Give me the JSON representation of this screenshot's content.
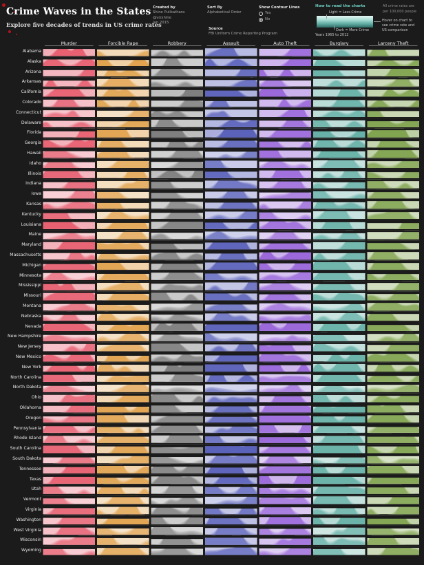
{
  "header": {
    "title": "Crime Waves in the States",
    "subtitle": "Explore five decades of trends in US crime rates",
    "created_by_label": "Created by",
    "author_name": "Shine Pulikathara",
    "author_handle": "@vizshine",
    "date": "Jan 2015",
    "sort_by_label": "Sort By",
    "sort_value": "Alphabetical Order",
    "source_label": "Source",
    "source_value": "FBI Uniform Crime Reporting Program",
    "contour_label": "Show Contour Lines",
    "contour_yes": "Yes",
    "contour_no": "No",
    "contour_selected": "No",
    "howto_title": "How to read the charts",
    "legend_light": "Light = Less Crime",
    "legend_dark": "Dark = More Crime",
    "legend_years": "Years  1965 to 2012",
    "rates_note_1": "All crime rates are",
    "rates_note_2": "per 100,000 people",
    "hover_note_1": "Hover on chart to",
    "hover_note_2": "see crime rate and",
    "hover_note_3": "US comparison"
  },
  "colors": {
    "background": "#1b1b1b",
    "Murder": "#e0344a",
    "Forcible Rape": "#d9891e",
    "Robbery": "#5b5b5b",
    "Assault": "#2c35a6",
    "Auto Theft": "#7e3ed0",
    "Burglary": "#3c9b8f",
    "Larceny Theft": "#5d8a1e"
  },
  "chart_data": {
    "type": "area",
    "x_range": [
      1965,
      2012
    ],
    "columns": [
      "Murder",
      "Forcible Rape",
      "Robbery",
      "Assault",
      "Auto Theft",
      "Burglary",
      "Larceny Theft"
    ],
    "rows": [
      "Alabama",
      "Alaska",
      "Arizona",
      "Arkansas",
      "California",
      "Colorado",
      "Connecticut",
      "Delaware",
      "Florida",
      "Georgia",
      "Hawaii",
      "Idaho",
      "Illinois",
      "Indiana",
      "Iowa",
      "Kansas",
      "Kentucky",
      "Louisiana",
      "Maine",
      "Maryland",
      "Massachusetts",
      "Michigan",
      "Minnesota",
      "Mississippi",
      "Missouri",
      "Montana",
      "Nebraska",
      "Nevada",
      "New Hampshire",
      "New Jersey",
      "New Mexico",
      "New York",
      "North Carolina",
      "North Dakota",
      "Ohio",
      "Oklahoma",
      "Oregon",
      "Pennsylvania",
      "Rhode Island",
      "South Carolina",
      "South Dakota",
      "Tennessee",
      "Texas",
      "Utah",
      "Vermont",
      "Virginia",
      "Washington",
      "West Virginia",
      "Wisconsin",
      "Wyoming"
    ],
    "intensity": [
      [
        9,
        5,
        5,
        6,
        7,
        6,
        6
      ],
      [
        8,
        9,
        5,
        7,
        8,
        7,
        7
      ],
      [
        7,
        7,
        6,
        6,
        8,
        8,
        8
      ],
      [
        7,
        5,
        4,
        5,
        4,
        6,
        5
      ],
      [
        8,
        7,
        9,
        8,
        9,
        8,
        7
      ],
      [
        5,
        7,
        5,
        5,
        7,
        7,
        7
      ],
      [
        4,
        3,
        6,
        4,
        7,
        6,
        6
      ],
      [
        5,
        7,
        6,
        7,
        6,
        6,
        8
      ],
      [
        8,
        8,
        9,
        9,
        7,
        9,
        9
      ],
      [
        8,
        5,
        6,
        6,
        6,
        7,
        7
      ],
      [
        3,
        5,
        4,
        2,
        7,
        8,
        8
      ],
      [
        3,
        4,
        2,
        3,
        2,
        4,
        5
      ],
      [
        7,
        5,
        8,
        7,
        7,
        5,
        6
      ],
      [
        5,
        4,
        5,
        4,
        5,
        5,
        5
      ],
      [
        2,
        3,
        3,
        3,
        2,
        4,
        5
      ],
      [
        4,
        5,
        4,
        5,
        4,
        6,
        6
      ],
      [
        6,
        3,
        4,
        3,
        3,
        4,
        4
      ],
      [
        9,
        6,
        7,
        7,
        6,
        7,
        6
      ],
      [
        2,
        3,
        2,
        2,
        2,
        4,
        4
      ],
      [
        8,
        6,
        9,
        8,
        7,
        6,
        6
      ],
      [
        4,
        4,
        6,
        6,
        9,
        6,
        5
      ],
      [
        7,
        8,
        8,
        7,
        8,
        7,
        6
      ],
      [
        2,
        6,
        5,
        3,
        5,
        6,
        6
      ],
      [
        8,
        4,
        4,
        4,
        3,
        5,
        4
      ],
      [
        7,
        5,
        6,
        6,
        6,
        6,
        5
      ],
      [
        3,
        3,
        2,
        3,
        3,
        3,
        5
      ],
      [
        3,
        4,
        3,
        3,
        4,
        4,
        6
      ],
      [
        8,
        8,
        8,
        8,
        9,
        8,
        7
      ],
      [
        2,
        3,
        2,
        2,
        2,
        3,
        4
      ],
      [
        5,
        3,
        7,
        5,
        7,
        5,
        5
      ],
      [
        7,
        8,
        5,
        8,
        6,
        8,
        7
      ],
      [
        8,
        5,
        9,
        8,
        8,
        7,
        6
      ],
      [
        7,
        4,
        5,
        7,
        4,
        7,
        6
      ],
      [
        1,
        2,
        1,
        1,
        2,
        2,
        3
      ],
      [
        5,
        6,
        6,
        4,
        6,
        6,
        6
      ],
      [
        6,
        8,
        5,
        6,
        6,
        8,
        6
      ],
      [
        4,
        6,
        5,
        5,
        7,
        7,
        7
      ],
      [
        5,
        4,
        6,
        4,
        6,
        4,
        4
      ],
      [
        3,
        4,
        5,
        4,
        8,
        6,
        5
      ],
      [
        7,
        7,
        5,
        9,
        5,
        8,
        7
      ],
      [
        3,
        4,
        2,
        3,
        2,
        3,
        3
      ],
      [
        8,
        7,
        6,
        8,
        6,
        7,
        6
      ],
      [
        8,
        7,
        7,
        7,
        8,
        8,
        7
      ],
      [
        3,
        5,
        3,
        3,
        4,
        6,
        6
      ],
      [
        2,
        3,
        2,
        2,
        3,
        5,
        6
      ],
      [
        6,
        4,
        5,
        4,
        4,
        5,
        5
      ],
      [
        4,
        8,
        5,
        5,
        7,
        8,
        8
      ],
      [
        5,
        2,
        2,
        3,
        3,
        3,
        3
      ],
      [
        3,
        3,
        4,
        3,
        5,
        4,
        5
      ],
      [
        3,
        4,
        2,
        3,
        3,
        3,
        5
      ]
    ]
  }
}
